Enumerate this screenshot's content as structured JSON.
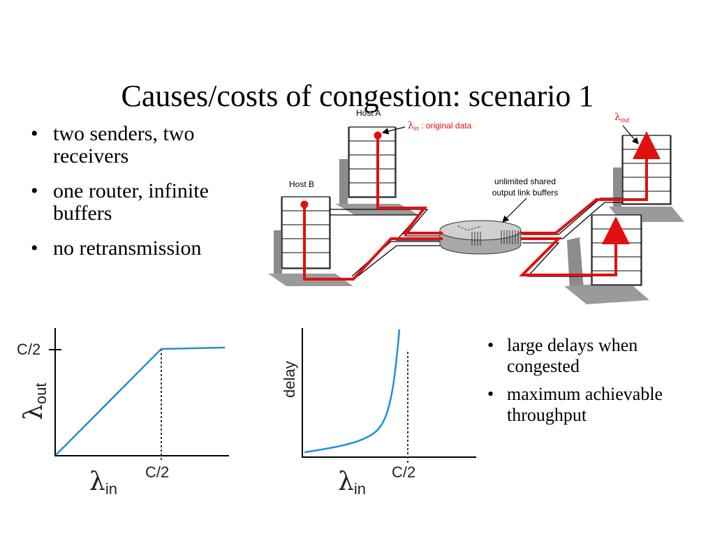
{
  "slide": {
    "title": "Causes/costs of congestion: scenario 1",
    "left_bullets": [
      "two senders, two receivers",
      "one router, infinite buffers",
      "no retransmission"
    ],
    "right_bullets": [
      "large delays when congested",
      "maximum achievable throughput"
    ],
    "bullet_glyph": "•"
  },
  "network": {
    "host_a_label": "Host A",
    "host_b_label": "Host B",
    "lambda_symbol": "λ",
    "lambda_in_sub": "in",
    "lambda_in_note": " : original data",
    "lambda_out_sub": "out",
    "router_note_line1": "unlimited shared",
    "router_note_line2": "output link buffers",
    "colors": {
      "flow": "#e01010",
      "host_fill": "#ffffff",
      "shadow": "#8c8c8c",
      "router": "#c8c8c8"
    }
  },
  "throughput_plot": {
    "y_tick": "C/2",
    "x_tick": "C/2",
    "y_label_symbol": "λ",
    "y_label_sub": "out",
    "x_label_symbol": "λ",
    "x_label_sub": "in",
    "line_color": "#1f8fd6"
  },
  "delay_plot": {
    "y_label": "delay",
    "x_tick": "C/2",
    "x_label_symbol": "λ",
    "x_label_sub": "in",
    "line_color": "#1f8fd6"
  }
}
